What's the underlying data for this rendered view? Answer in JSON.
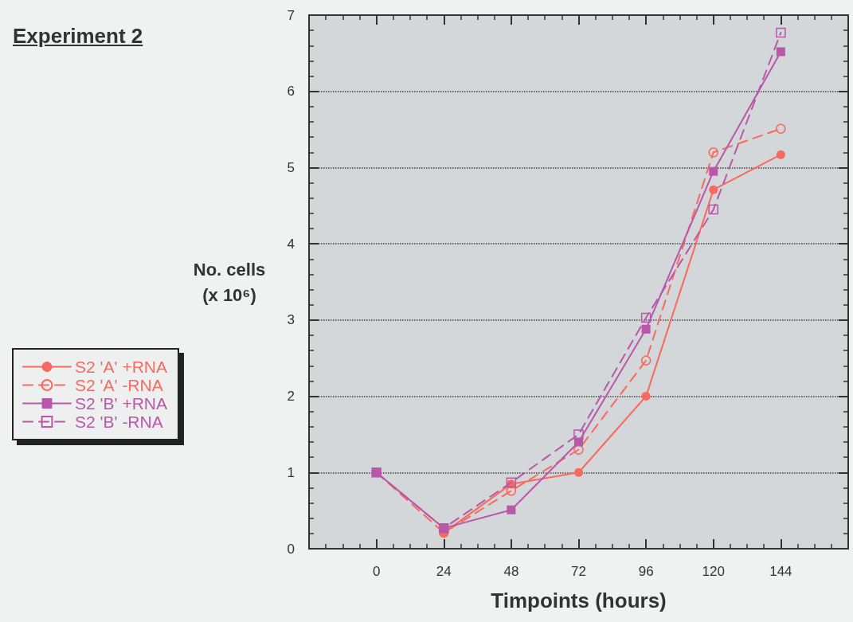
{
  "chart_data": {
    "type": "line",
    "title": "Experiment 2",
    "xlabel": "Timpoints (hours)",
    "ylabel": "No. cells\n(x 10⁶)",
    "x": [
      0,
      24,
      48,
      72,
      96,
      120,
      144
    ],
    "series": [
      {
        "name": "S2 'A' +RNA",
        "color": "#f86a5e",
        "marker": "circle",
        "line_style": "solid",
        "values": [
          null,
          0.21,
          0.85,
          1.0,
          2.0,
          4.71,
          5.17
        ]
      },
      {
        "name": "S2 'A' -RNA",
        "color": "#f86a5e",
        "marker": "circle",
        "line_style": "dashed",
        "values": [
          1,
          0.21,
          0.76,
          1.3,
          2.47,
          5.2,
          5.51
        ]
      },
      {
        "name": "S2 'B' +RNA",
        "color": "#b957a8",
        "marker": "square",
        "line_style": "solid",
        "values": [
          1,
          0.27,
          0.51,
          1.4,
          2.88,
          4.95,
          6.52
        ]
      },
      {
        "name": "S2 'B' -RNA",
        "color": "#b957a8",
        "marker": "square",
        "line_style": "dashed",
        "values": [
          1,
          0.27,
          0.87,
          1.5,
          3.03,
          4.45,
          6.77
        ]
      }
    ],
    "xlim": [
      -24,
      168
    ],
    "xticks": [
      0,
      24,
      48,
      72,
      96,
      120,
      144
    ],
    "ylim": [
      0,
      7
    ],
    "yticks": [
      0,
      1,
      2,
      3,
      4,
      5,
      6,
      7
    ],
    "grid": "y",
    "legend": "left"
  }
}
